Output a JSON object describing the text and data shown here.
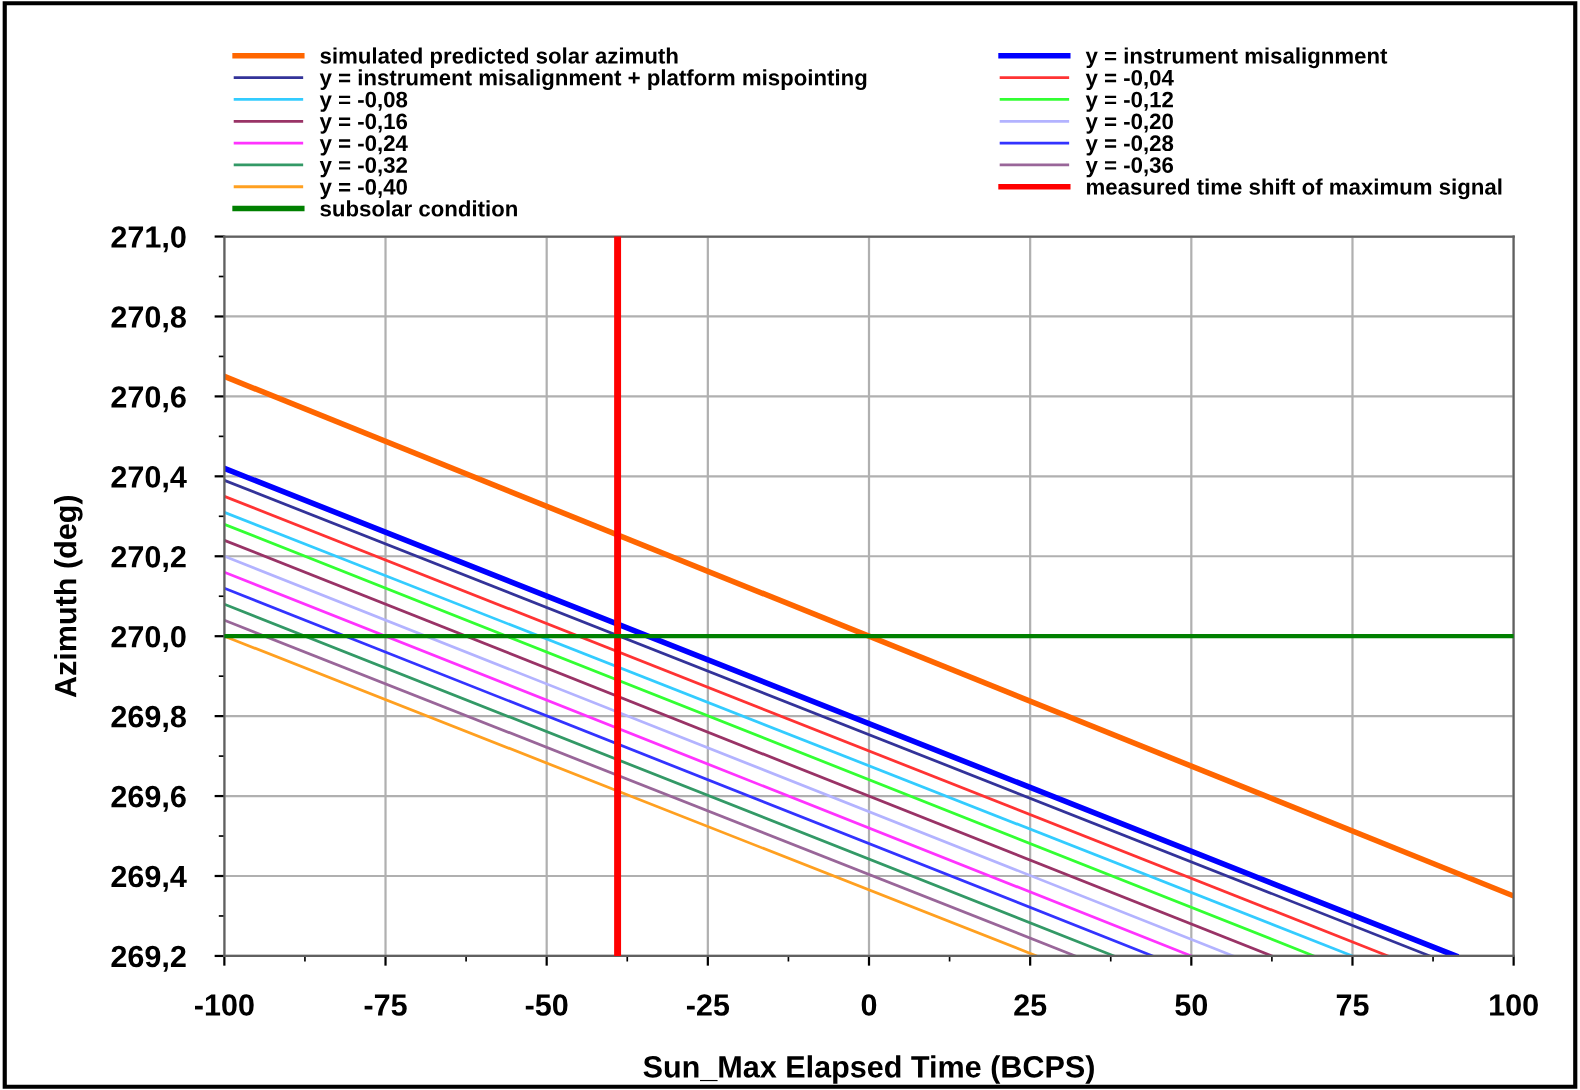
{
  "chart_data": {
    "type": "line",
    "xlabel": "Sun_Max Elapsed Time (BCPS)",
    "ylabel": "Azimuth (deg)",
    "xlim": [
      -100,
      100
    ],
    "xticks": [
      -100,
      -75,
      -50,
      -25,
      0,
      25,
      50,
      75,
      100
    ],
    "ylim": [
      269.2,
      271.0
    ],
    "yticks": [
      {
        "value": 269.2,
        "label": "269,2"
      },
      {
        "value": 269.4,
        "label": "269,4"
      },
      {
        "value": 269.6,
        "label": "269,6"
      },
      {
        "value": 269.8,
        "label": "269,8"
      },
      {
        "value": 270.0,
        "label": "270,0"
      },
      {
        "value": 270.2,
        "label": "270,2"
      },
      {
        "value": 270.4,
        "label": "270,4"
      },
      {
        "value": 270.6,
        "label": "270,6"
      },
      {
        "value": 270.8,
        "label": "270,8"
      },
      {
        "value": 271.0,
        "label": "271,0"
      }
    ],
    "grid": true,
    "legend": "top",
    "marker": "none",
    "line_style": "solid",
    "series": [
      {
        "name": "simulated predicted solar azimuth",
        "color": "#ff6600",
        "x": [
          -100,
          100
        ],
        "values": [
          270.65,
          269.35
        ]
      },
      {
        "name": "y = instrument misalignment",
        "color": "#0000ff",
        "x": [
          -100,
          91
        ],
        "values": [
          270.42,
          269.2
        ]
      },
      {
        "name": "y = instrument misalignment + platform mispointing",
        "color": "#333399",
        "x": [
          -100,
          87
        ],
        "values": [
          270.39,
          269.2
        ]
      },
      {
        "name": "y = -0,04",
        "color": "#ff3333",
        "x": [
          -100,
          80.5
        ],
        "values": [
          270.35,
          269.2
        ]
      },
      {
        "name": "y = -0,08",
        "color": "#33ccff",
        "x": [
          -100,
          75
        ],
        "values": [
          270.31,
          269.2
        ]
      },
      {
        "name": "y = -0,12",
        "color": "#33ff33",
        "x": [
          -100,
          69
        ],
        "values": [
          270.28,
          269.2
        ]
      },
      {
        "name": "y = -0,16",
        "color": "#993366",
        "x": [
          -100,
          62.5
        ],
        "values": [
          270.24,
          269.2
        ]
      },
      {
        "name": "y = -0,20",
        "color": "#b3b3ff",
        "x": [
          -100,
          56.5
        ],
        "values": [
          270.2,
          269.2
        ]
      },
      {
        "name": "y = -0,24",
        "color": "#ff33ff",
        "x": [
          -100,
          50
        ],
        "values": [
          270.16,
          269.2
        ]
      },
      {
        "name": "y = -0,28",
        "color": "#3333ff",
        "x": [
          -100,
          44
        ],
        "values": [
          270.12,
          269.2
        ]
      },
      {
        "name": "y = -0,32",
        "color": "#339966",
        "x": [
          -100,
          38
        ],
        "values": [
          270.08,
          269.2
        ]
      },
      {
        "name": "y = -0,36",
        "color": "#996699",
        "x": [
          -100,
          32
        ],
        "values": [
          270.04,
          269.2
        ]
      },
      {
        "name": "y = -0,40",
        "color": "#ffa020",
        "x": [
          -100,
          26
        ],
        "values": [
          270.0,
          269.2
        ]
      }
    ],
    "ref_lines": [
      {
        "axis": "x",
        "value": -39,
        "label": "measured time shift of maximum signal",
        "color": "#ff0000"
      },
      {
        "axis": "y",
        "value": 270.0,
        "label": "subsolar condition",
        "color": "#008000"
      }
    ]
  }
}
